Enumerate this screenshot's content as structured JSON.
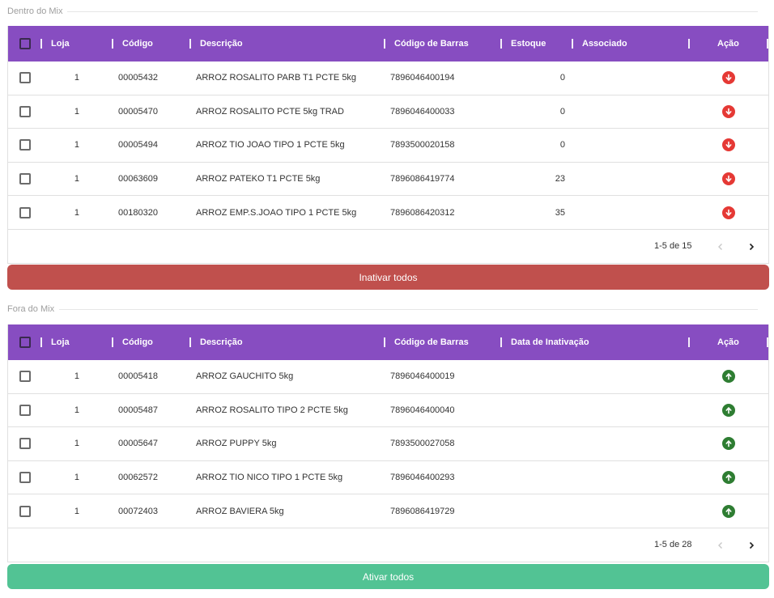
{
  "colors": {
    "header_bg": "#874dc1",
    "inactivate_button": "#c0504d",
    "activate_button": "#52c394",
    "remove_icon": "#e53935",
    "add_icon": "#2e7d32"
  },
  "inside": {
    "section_title": "Dentro do Mix",
    "columns": {
      "loja": "Loja",
      "codigo": "Código",
      "descricao": "Descrição",
      "codigo_barras": "Código de Barras",
      "estoque": "Estoque",
      "associado": "Associado",
      "acao": "Ação"
    },
    "rows": [
      {
        "loja": "1",
        "codigo": "00005432",
        "descricao": "ARROZ ROSALITO PARB T1 PCTE 5kg",
        "codigo_barras": "7896046400194",
        "estoque": "0",
        "associado": "",
        "action_icon": "arrow-down-circle-icon"
      },
      {
        "loja": "1",
        "codigo": "00005470",
        "descricao": "ARROZ ROSALITO PCTE 5kg TRAD",
        "codigo_barras": "7896046400033",
        "estoque": "0",
        "associado": "",
        "action_icon": "arrow-down-circle-icon"
      },
      {
        "loja": "1",
        "codigo": "00005494",
        "descricao": "ARROZ TIO JOAO TIPO 1 PCTE 5kg",
        "codigo_barras": "7893500020158",
        "estoque": "0",
        "associado": "",
        "action_icon": "arrow-down-circle-icon"
      },
      {
        "loja": "1",
        "codigo": "00063609",
        "descricao": "ARROZ PATEKO T1 PCTE 5kg",
        "codigo_barras": "7896086419774",
        "estoque": "23",
        "associado": "",
        "action_icon": "arrow-down-circle-icon"
      },
      {
        "loja": "1",
        "codigo": "00180320",
        "descricao": "ARROZ EMP.S.JOAO TIPO 1 PCTE 5kg",
        "codigo_barras": "7896086420312",
        "estoque": "35",
        "associado": "",
        "action_icon": "arrow-down-circle-icon"
      }
    ],
    "pagination": "1-5 de 15",
    "bulk_button": "Inativar todos"
  },
  "outside": {
    "section_title": "Fora do Mix",
    "columns": {
      "loja": "Loja",
      "codigo": "Código",
      "descricao": "Descrição",
      "codigo_barras": "Código de Barras",
      "data_inativacao": "Data de Inativação",
      "acao": "Ação"
    },
    "rows": [
      {
        "loja": "1",
        "codigo": "00005418",
        "descricao": "ARROZ GAUCHITO 5kg",
        "codigo_barras": "7896046400019",
        "data_inativacao": "",
        "action_icon": "arrow-up-circle-icon"
      },
      {
        "loja": "1",
        "codigo": "00005487",
        "descricao": "ARROZ ROSALITO TIPO 2 PCTE 5kg",
        "codigo_barras": "7896046400040",
        "data_inativacao": "",
        "action_icon": "arrow-up-circle-icon"
      },
      {
        "loja": "1",
        "codigo": "00005647",
        "descricao": "ARROZ PUPPY 5kg",
        "codigo_barras": "7893500027058",
        "data_inativacao": "",
        "action_icon": "arrow-up-circle-icon"
      },
      {
        "loja": "1",
        "codigo": "00062572",
        "descricao": "ARROZ TIO NICO TIPO 1 PCTE 5kg",
        "codigo_barras": "7896046400293",
        "data_inativacao": "",
        "action_icon": "arrow-up-circle-icon"
      },
      {
        "loja": "1",
        "codigo": "00072403",
        "descricao": "ARROZ BAVIERA 5kg",
        "codigo_barras": "7896086419729",
        "data_inativacao": "",
        "action_icon": "arrow-up-circle-icon"
      }
    ],
    "pagination": "1-5 de 28",
    "bulk_button": "Ativar todos"
  }
}
